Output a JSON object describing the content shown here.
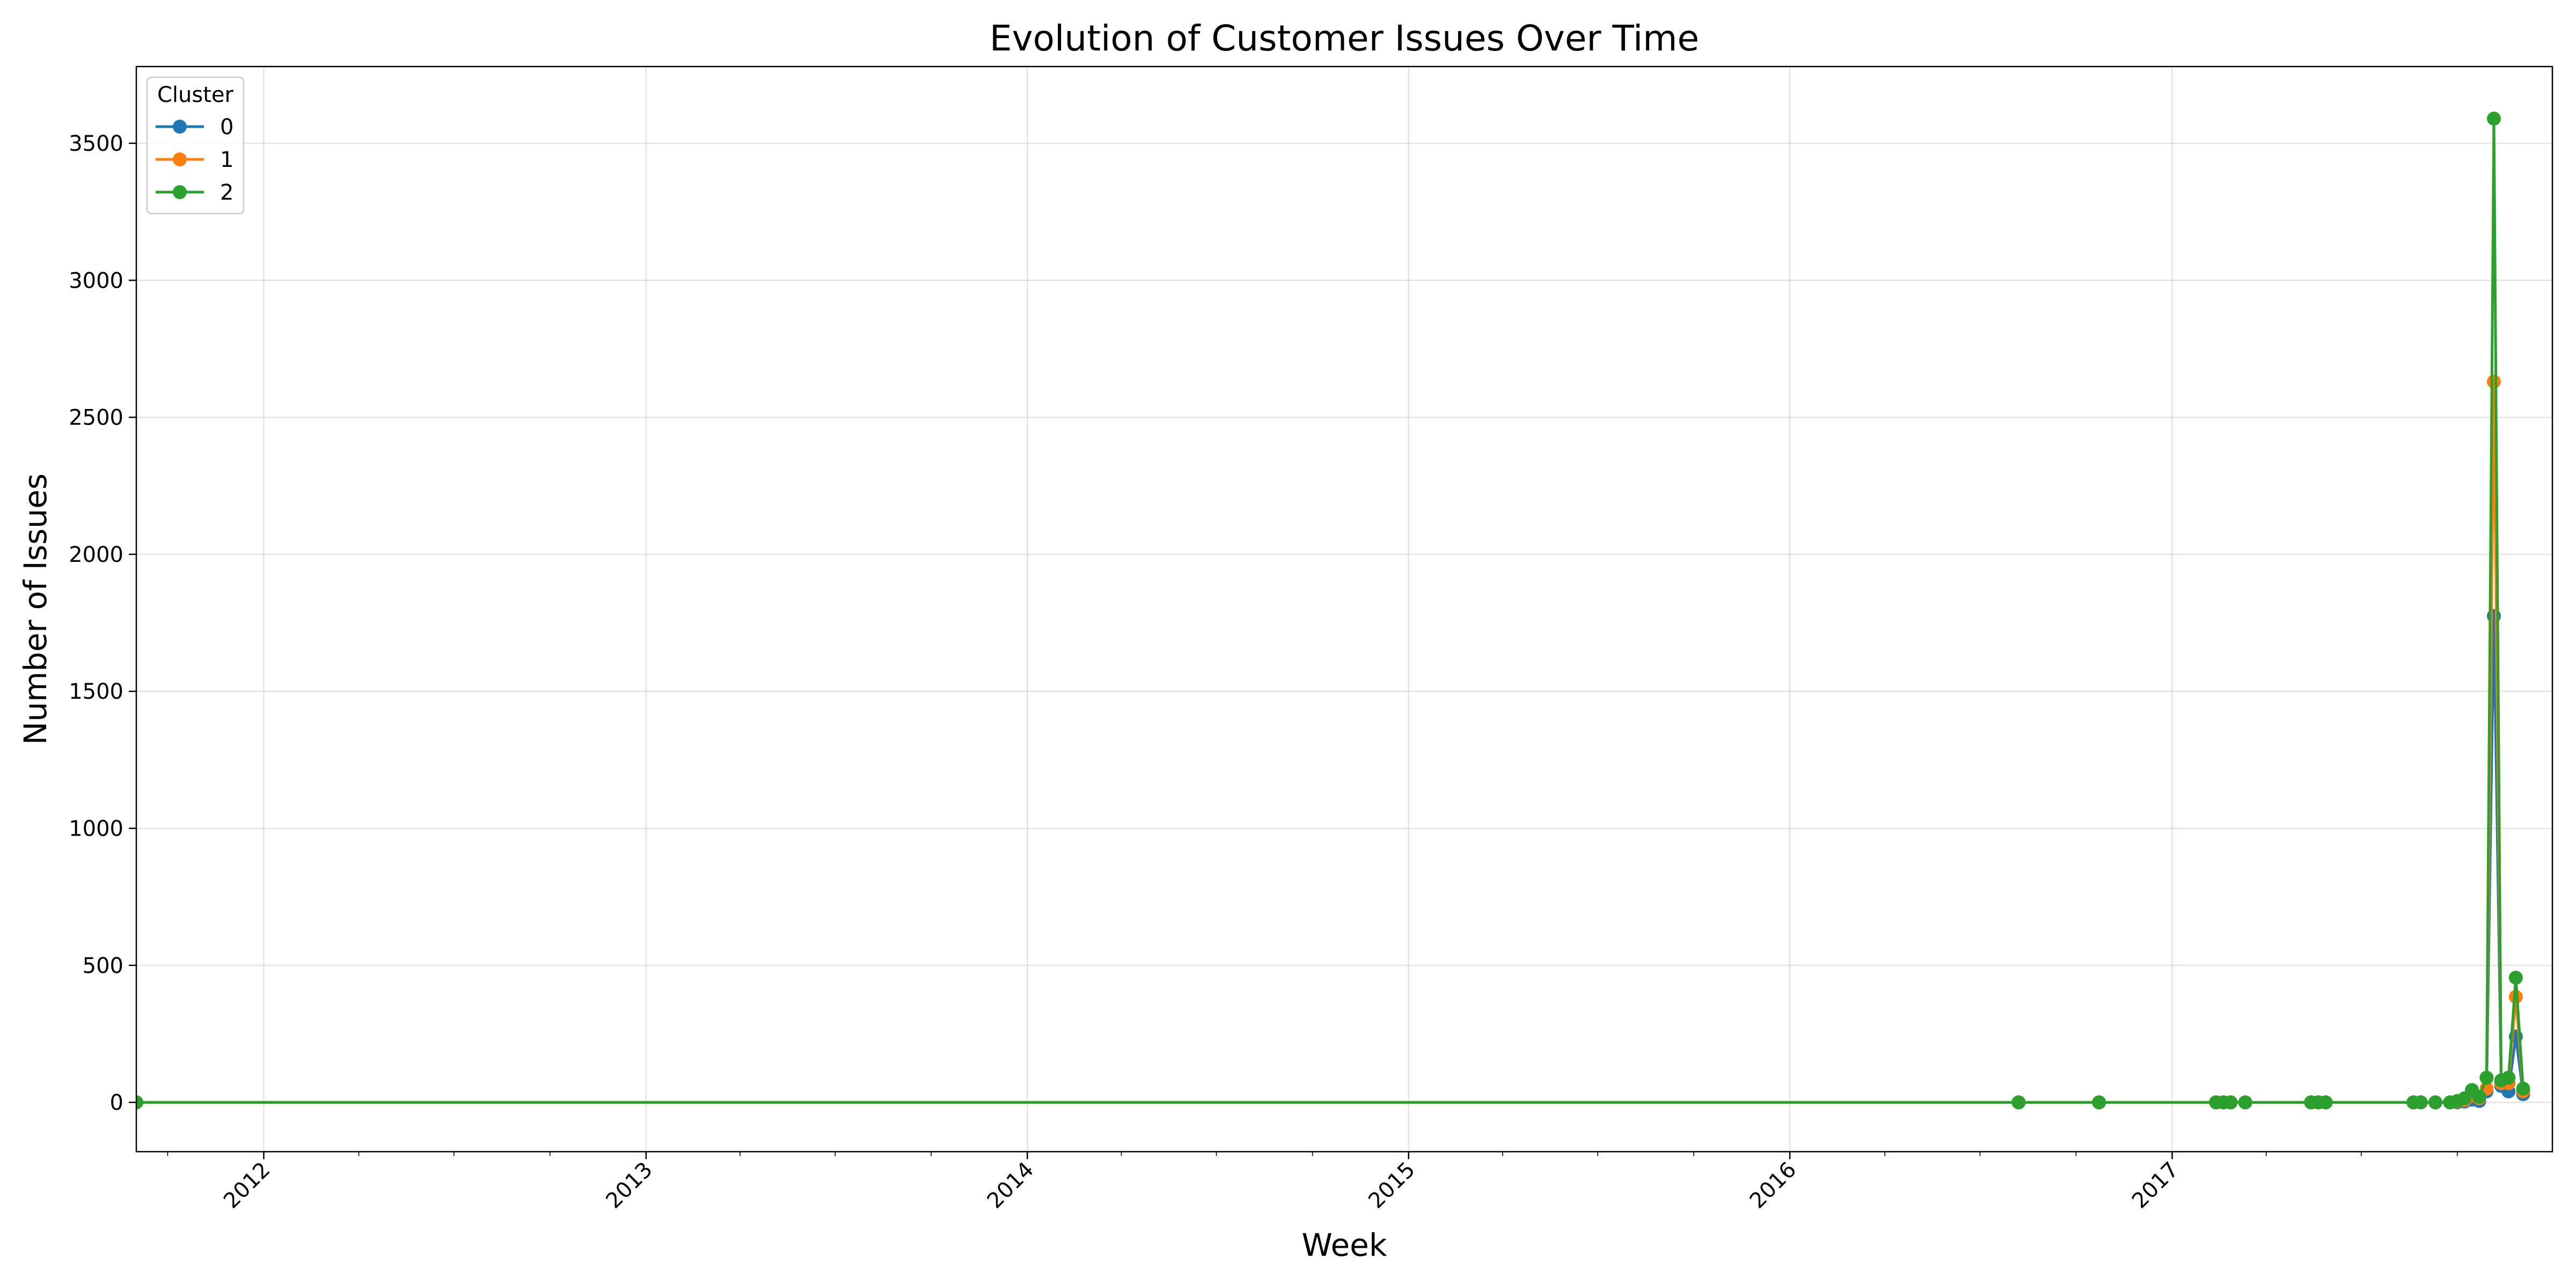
{
  "chart_data": {
    "type": "line",
    "title": "Evolution of Customer Issues Over Time",
    "xlabel": "Week",
    "ylabel": "Number of Issues",
    "xlim": [
      "2011-09-01",
      "2017-12-31"
    ],
    "ylim": [
      -180,
      3780
    ],
    "x_ticks": [
      "2012",
      "2013",
      "2014",
      "2015",
      "2016",
      "2017"
    ],
    "y_ticks": [
      0,
      500,
      1000,
      1500,
      2000,
      2500,
      3000,
      3500
    ],
    "grid": true,
    "legend": {
      "title": "Cluster",
      "position": "top-left",
      "entries": [
        "0",
        "1",
        "2"
      ]
    },
    "series": [
      {
        "name": "0",
        "color": "#1f77b4",
        "points": [
          [
            "2011-09-01",
            0
          ],
          [
            "2016-08-07",
            0
          ],
          [
            "2016-10-23",
            0
          ],
          [
            "2017-02-12",
            0
          ],
          [
            "2017-02-19",
            0
          ],
          [
            "2017-02-26",
            0
          ],
          [
            "2017-03-12",
            0
          ],
          [
            "2017-05-14",
            0
          ],
          [
            "2017-05-21",
            0
          ],
          [
            "2017-05-28",
            0
          ],
          [
            "2017-08-20",
            0
          ],
          [
            "2017-08-27",
            0
          ],
          [
            "2017-09-10",
            0
          ],
          [
            "2017-09-24",
            0
          ],
          [
            "2017-10-01",
            0
          ],
          [
            "2017-10-08",
            3
          ],
          [
            "2017-10-15",
            10
          ],
          [
            "2017-10-22",
            5
          ],
          [
            "2017-10-29",
            40
          ],
          [
            "2017-11-05",
            1775
          ],
          [
            "2017-11-12",
            60
          ],
          [
            "2017-11-19",
            40
          ],
          [
            "2017-11-26",
            240
          ],
          [
            "2017-12-03",
            30
          ]
        ]
      },
      {
        "name": "1",
        "color": "#ff7f0e",
        "points": [
          [
            "2011-09-01",
            0
          ],
          [
            "2016-08-07",
            0
          ],
          [
            "2016-10-23",
            0
          ],
          [
            "2017-02-12",
            0
          ],
          [
            "2017-02-19",
            0
          ],
          [
            "2017-02-26",
            0
          ],
          [
            "2017-03-12",
            0
          ],
          [
            "2017-05-14",
            0
          ],
          [
            "2017-05-21",
            0
          ],
          [
            "2017-05-28",
            0
          ],
          [
            "2017-08-20",
            0
          ],
          [
            "2017-08-27",
            0
          ],
          [
            "2017-09-10",
            0
          ],
          [
            "2017-09-24",
            0
          ],
          [
            "2017-10-01",
            3
          ],
          [
            "2017-10-08",
            8
          ],
          [
            "2017-10-15",
            25
          ],
          [
            "2017-10-22",
            15
          ],
          [
            "2017-10-29",
            50
          ],
          [
            "2017-11-05",
            2630
          ],
          [
            "2017-11-12",
            70
          ],
          [
            "2017-11-19",
            70
          ],
          [
            "2017-11-26",
            385
          ],
          [
            "2017-12-03",
            40
          ]
        ]
      },
      {
        "name": "2",
        "color": "#2ca02c",
        "points": [
          [
            "2011-09-01",
            0
          ],
          [
            "2016-08-07",
            0
          ],
          [
            "2016-10-23",
            0
          ],
          [
            "2017-02-12",
            0
          ],
          [
            "2017-02-19",
            0
          ],
          [
            "2017-02-26",
            0
          ],
          [
            "2017-03-12",
            0
          ],
          [
            "2017-05-14",
            0
          ],
          [
            "2017-05-21",
            0
          ],
          [
            "2017-05-28",
            0
          ],
          [
            "2017-08-20",
            0
          ],
          [
            "2017-08-27",
            0
          ],
          [
            "2017-09-10",
            0
          ],
          [
            "2017-09-24",
            0
          ],
          [
            "2017-10-01",
            5
          ],
          [
            "2017-10-08",
            15
          ],
          [
            "2017-10-15",
            45
          ],
          [
            "2017-10-22",
            20
          ],
          [
            "2017-10-29",
            90
          ],
          [
            "2017-11-05",
            3590
          ],
          [
            "2017-11-12",
            80
          ],
          [
            "2017-11-19",
            90
          ],
          [
            "2017-11-26",
            455
          ],
          [
            "2017-12-03",
            50
          ]
        ]
      }
    ]
  }
}
